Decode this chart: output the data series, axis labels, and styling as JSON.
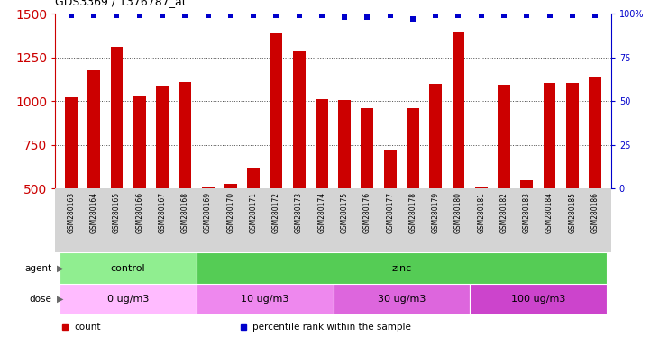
{
  "title": "GDS3369 / 1376787_at",
  "samples": [
    "GSM280163",
    "GSM280164",
    "GSM280165",
    "GSM280166",
    "GSM280167",
    "GSM280168",
    "GSM280169",
    "GSM280170",
    "GSM280171",
    "GSM280172",
    "GSM280173",
    "GSM280174",
    "GSM280175",
    "GSM280176",
    "GSM280177",
    "GSM280178",
    "GSM280179",
    "GSM280180",
    "GSM280181",
    "GSM280182",
    "GSM280183",
    "GSM280184",
    "GSM280185",
    "GSM280186"
  ],
  "counts": [
    1020,
    1175,
    1310,
    1030,
    1090,
    1110,
    510,
    525,
    620,
    1390,
    1285,
    1010,
    1005,
    960,
    720,
    960,
    1100,
    1400,
    510,
    1095,
    550,
    1105,
    1105,
    1140
  ],
  "percentile_ranks": [
    99,
    99,
    99,
    99,
    99,
    99,
    99,
    99,
    99,
    99,
    99,
    99,
    98,
    98,
    99,
    97,
    99,
    99,
    99,
    99,
    99,
    99,
    99,
    99
  ],
  "bar_color": "#cc0000",
  "percentile_color": "#0000cc",
  "ylim_left": [
    500,
    1500
  ],
  "ylim_right": [
    0,
    100
  ],
  "yticks_left": [
    500,
    750,
    1000,
    1250,
    1500
  ],
  "yticks_right": [
    0,
    25,
    50,
    75,
    100
  ],
  "agent_groups": [
    {
      "label": "control",
      "start": 0,
      "end": 6,
      "color": "#90ee90"
    },
    {
      "label": "zinc",
      "start": 6,
      "end": 24,
      "color": "#55cc55"
    }
  ],
  "dose_groups": [
    {
      "label": "0 ug/m3",
      "start": 0,
      "end": 6,
      "color": "#ffbbff"
    },
    {
      "label": "10 ug/m3",
      "start": 6,
      "end": 12,
      "color": "#ee88ee"
    },
    {
      "label": "30 ug/m3",
      "start": 12,
      "end": 18,
      "color": "#dd66dd"
    },
    {
      "label": "100 ug/m3",
      "start": 18,
      "end": 24,
      "color": "#cc44cc"
    }
  ],
  "bg_color": "#ffffff",
  "xtick_bg": "#d4d4d4",
  "axis_color_left": "#cc0000",
  "axis_color_right": "#0000cc",
  "grid_lines": [
    750,
    1000,
    1250
  ],
  "legend_items": [
    {
      "color": "#cc0000",
      "label": "count"
    },
    {
      "color": "#0000cc",
      "label": "percentile rank within the sample"
    }
  ]
}
